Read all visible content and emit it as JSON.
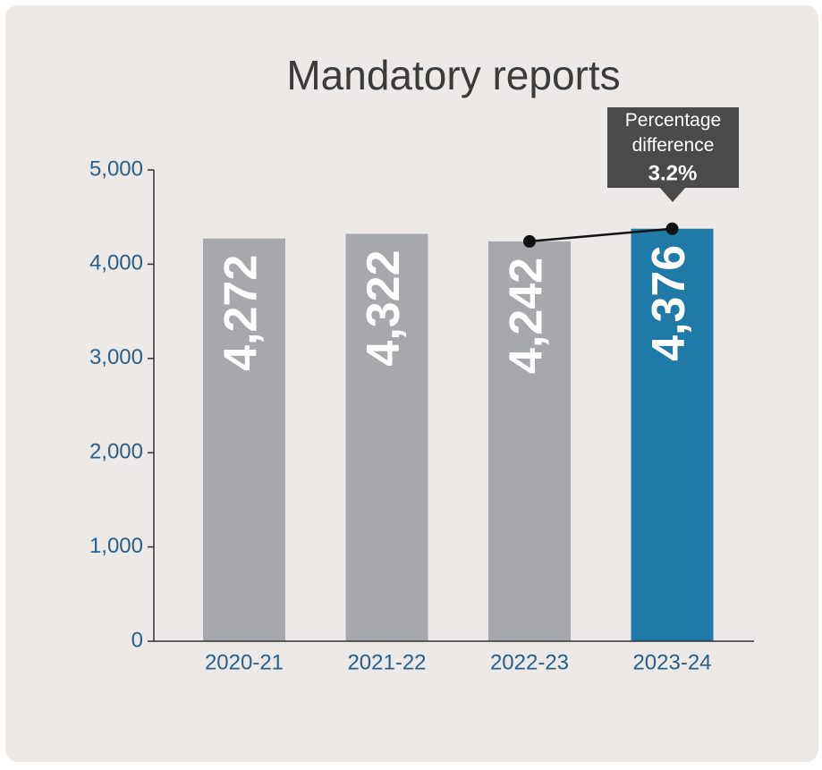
{
  "chart_data": {
    "type": "bar",
    "title": "Mandatory reports",
    "categories": [
      "2020-21",
      "2021-22",
      "2022-23",
      "2023-24"
    ],
    "values": [
      4272,
      4322,
      4242,
      4376
    ],
    "value_labels": [
      "4,272",
      "4,322",
      "4,242",
      "4,376"
    ],
    "colors": [
      "#a7a8ac",
      "#a7a8ac",
      "#a7a8ac",
      "#1f7aa8"
    ],
    "ylim": [
      0,
      5000
    ],
    "yticks": [
      0,
      {
        "value": 1000,
        "label": "1,000"
      },
      {
        "value": 2000,
        "label": "2,000"
      },
      {
        "value": 3000,
        "label": "3,000"
      },
      {
        "value": 4000,
        "label": "4,000"
      },
      {
        "value": 5000,
        "label": "5,000"
      }
    ],
    "annotation": {
      "text": "Percentage difference",
      "value_label": "3.2%"
    }
  }
}
